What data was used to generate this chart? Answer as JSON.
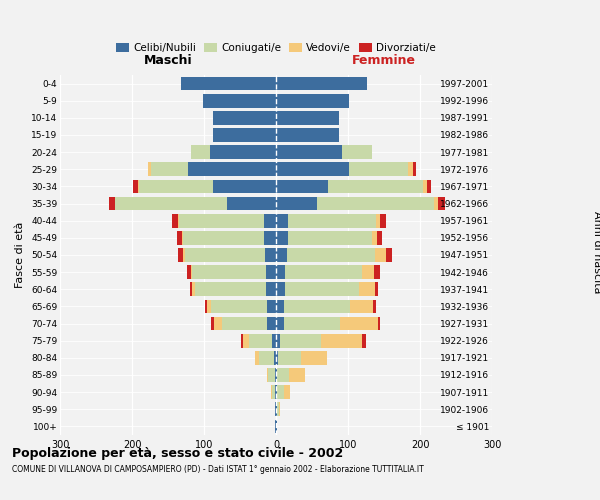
{
  "age_groups": [
    "100+",
    "95-99",
    "90-94",
    "85-89",
    "80-84",
    "75-79",
    "70-74",
    "65-69",
    "60-64",
    "55-59",
    "50-54",
    "45-49",
    "40-44",
    "35-39",
    "30-34",
    "25-29",
    "20-24",
    "15-19",
    "10-14",
    "5-9",
    "0-4"
  ],
  "birth_years": [
    "≤ 1901",
    "1902-1906",
    "1907-1911",
    "1912-1916",
    "1917-1921",
    "1922-1926",
    "1927-1931",
    "1932-1936",
    "1937-1941",
    "1942-1946",
    "1947-1951",
    "1952-1956",
    "1957-1961",
    "1962-1966",
    "1967-1971",
    "1972-1976",
    "1977-1981",
    "1982-1986",
    "1987-1991",
    "1992-1996",
    "1997-2001"
  ],
  "male_celibi": [
    1,
    1,
    2,
    2,
    3,
    6,
    13,
    12,
    14,
    14,
    15,
    17,
    17,
    68,
    88,
    122,
    92,
    88,
    88,
    102,
    132
  ],
  "male_coniugati": [
    0,
    1,
    4,
    9,
    20,
    32,
    62,
    78,
    98,
    102,
    112,
    112,
    118,
    155,
    102,
    52,
    26,
    0,
    0,
    0,
    0
  ],
  "male_vedovi": [
    0,
    0,
    1,
    2,
    6,
    8,
    11,
    6,
    4,
    2,
    2,
    1,
    1,
    1,
    1,
    4,
    0,
    0,
    0,
    0,
    0
  ],
  "male_divorziati": [
    0,
    0,
    0,
    0,
    0,
    2,
    4,
    3,
    3,
    6,
    7,
    7,
    8,
    8,
    8,
    0,
    0,
    0,
    0,
    0,
    0
  ],
  "female_nubili": [
    1,
    1,
    2,
    2,
    3,
    6,
    11,
    11,
    13,
    13,
    15,
    17,
    17,
    57,
    72,
    102,
    92,
    88,
    88,
    102,
    127
  ],
  "female_coniugate": [
    0,
    3,
    9,
    16,
    32,
    57,
    78,
    92,
    102,
    107,
    122,
    117,
    122,
    162,
    132,
    82,
    42,
    0,
    0,
    0,
    0
  ],
  "female_vedove": [
    0,
    2,
    9,
    22,
    36,
    57,
    52,
    32,
    22,
    16,
    16,
    6,
    6,
    6,
    6,
    6,
    0,
    0,
    0,
    0,
    0
  ],
  "female_divorziate": [
    0,
    0,
    0,
    0,
    0,
    5,
    4,
    4,
    4,
    8,
    8,
    7,
    8,
    10,
    5,
    5,
    0,
    0,
    0,
    0,
    0
  ],
  "color_celibi": "#3d6d9e",
  "color_coniugati": "#c8d9a8",
  "color_vedovi": "#f5c97a",
  "color_divorziati": "#cc2222",
  "legend_labels": [
    "Celibi/Nubili",
    "Coniugati/e",
    "Vedovi/e",
    "Divorziati/e"
  ],
  "title": "Popolazione per età, sesso e stato civile - 2002",
  "subtitle": "COMUNE DI VILLANOVA DI CAMPOSAMPIERO (PD) - Dati ISTAT 1° gennaio 2002 - Elaborazione TUTTITALIA.IT",
  "label_maschi": "Maschi",
  "label_femmine": "Femmine",
  "ylabel_left": "Fasce di età",
  "ylabel_right": "Anni di nascita",
  "xlim": 300,
  "background_color": "#f2f2f2"
}
